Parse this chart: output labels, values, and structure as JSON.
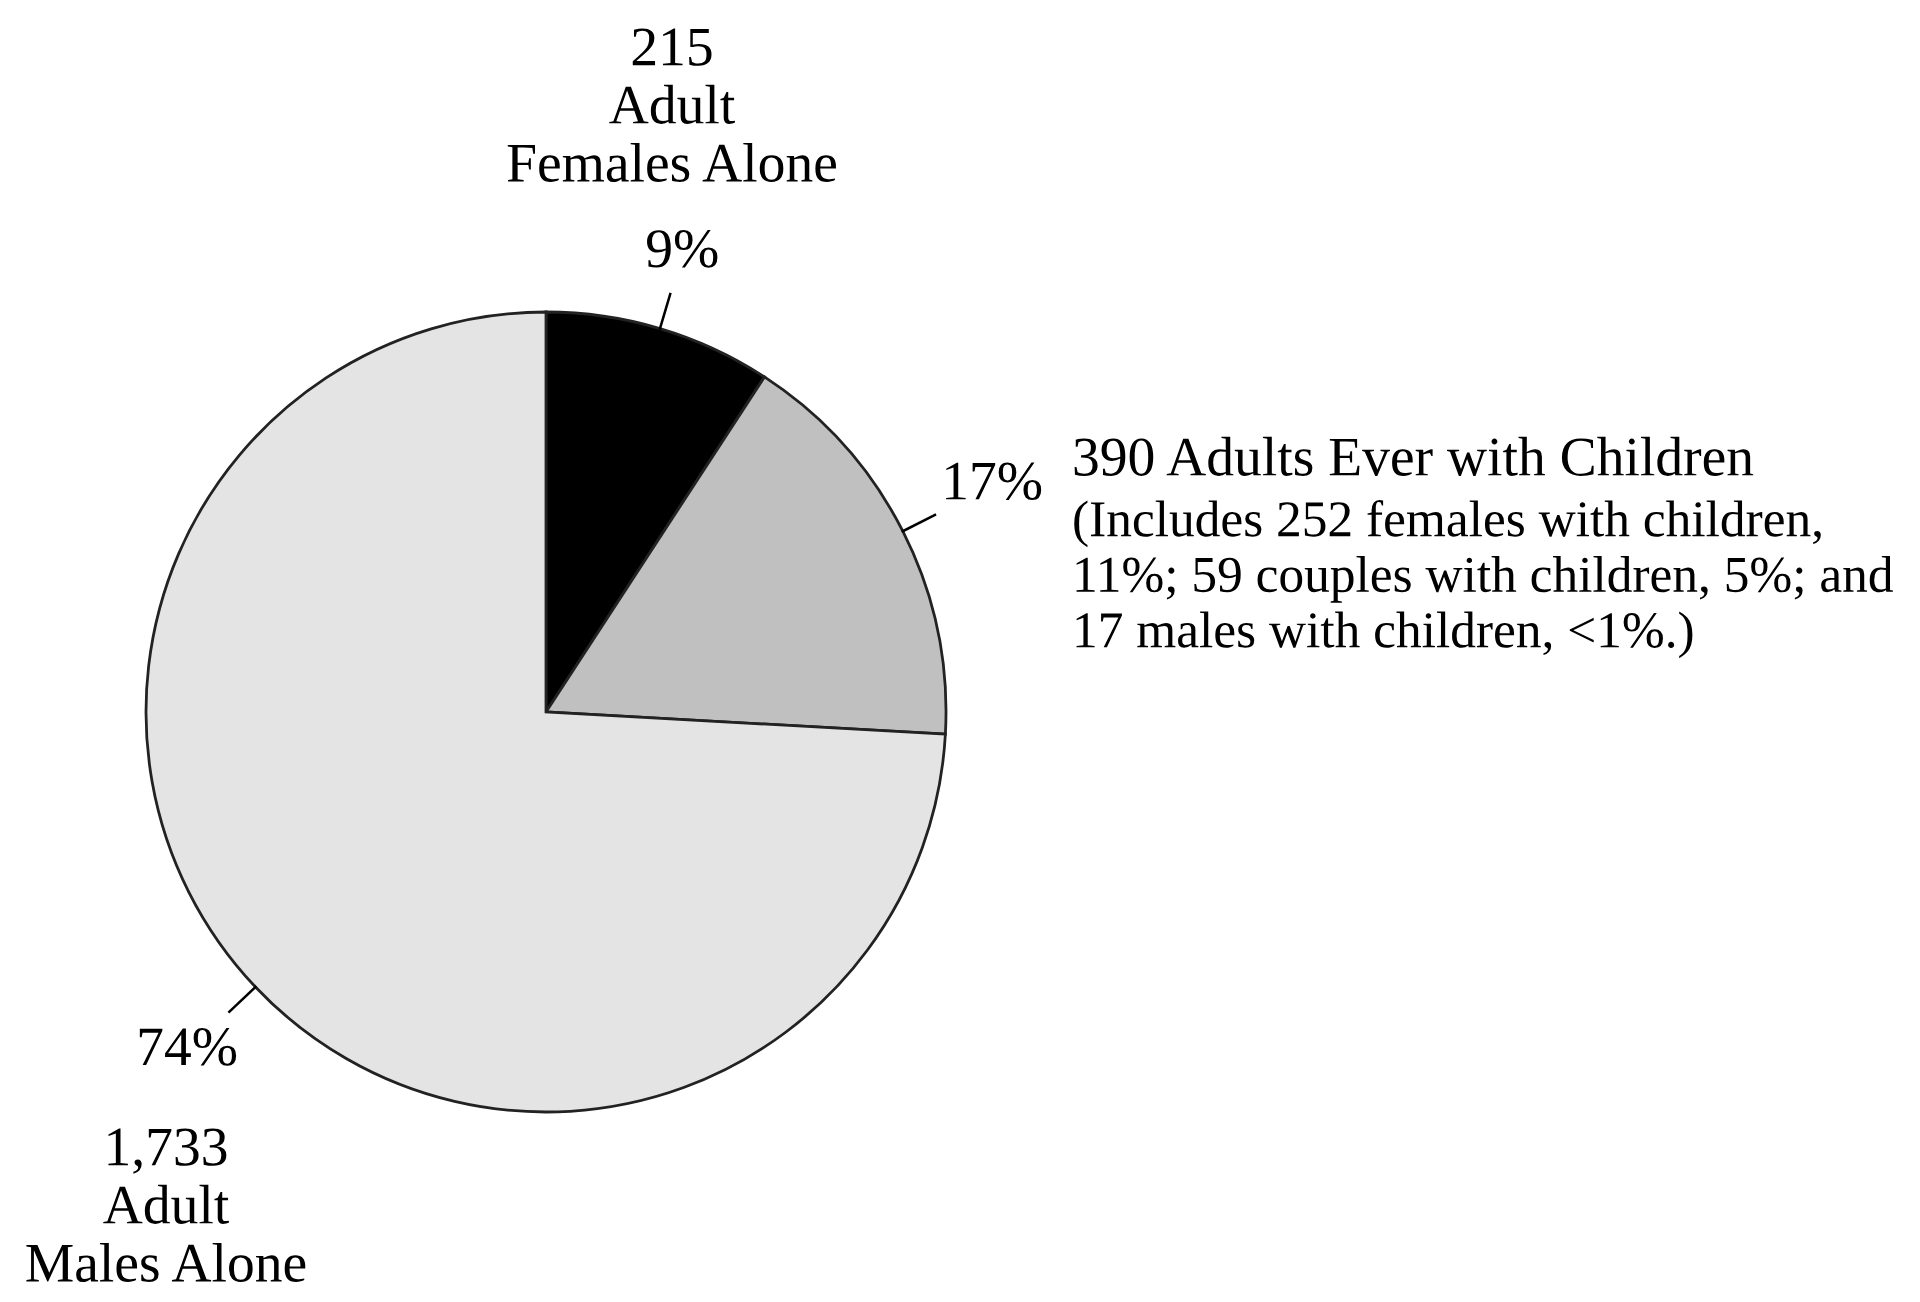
{
  "chart_data": {
    "type": "pie",
    "categories": [
      "Adult Females Alone",
      "Adults Ever with Children",
      "Adult Males Alone"
    ],
    "values": [
      215,
      390,
      1733
    ],
    "value_labels": [
      "215",
      "390",
      "1,733"
    ],
    "colors": [
      "#000000",
      "#c0c0c0",
      "#e4e4e4"
    ],
    "annotations": [
      {
        "text": "9%",
        "x": "Adult Females Alone"
      },
      {
        "text": "17%",
        "x": "Adults Ever with Children"
      },
      {
        "text": "74%",
        "x": "Adult Males Alone"
      },
      "(Includes 252 females with children, 11%; 59 couples with children, 5%; and 17 males with children, <1%.)"
    ]
  }
}
